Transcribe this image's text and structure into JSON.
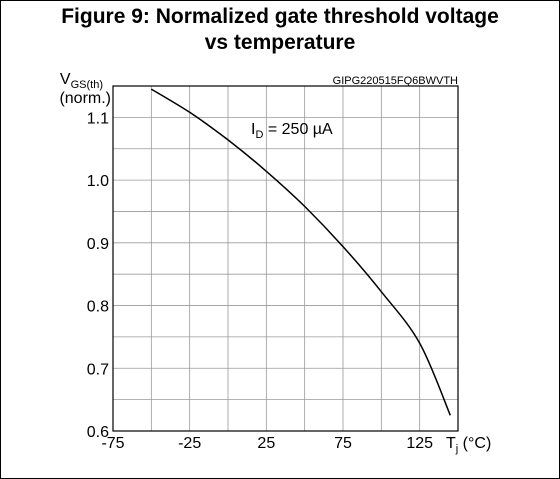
{
  "figure": {
    "title_line1": "Figure 9: Normalized gate threshold voltage",
    "title_line2": "vs temperature"
  },
  "chart_data": {
    "type": "line",
    "title": "Figure 9: Normalized gate threshold voltage vs temperature",
    "code": "GIPG220515FQ6BWVTH",
    "ylabel_main": "V",
    "ylabel_sub": "GS(th)",
    "ylabel_line2": "(norm.)",
    "xlabel_main": "T",
    "xlabel_sub": "j",
    "xlabel_unit": " (°C)",
    "annotation_main": "I",
    "annotation_sub": "D",
    "annotation_value": " = 250 µA",
    "xlim": [
      -75,
      150
    ],
    "ylim": [
      0.6,
      1.15
    ],
    "x_ticks": [
      -75,
      -25,
      25,
      75,
      125
    ],
    "x_tick_labels": [
      "-75",
      "-25",
      "25",
      "75",
      "125"
    ],
    "y_ticks": [
      0.6,
      0.7,
      0.8,
      0.9,
      1.0,
      1.1
    ],
    "y_tick_labels": [
      "0.6",
      "0.7",
      "0.8",
      "0.9",
      "1.0",
      "1.1"
    ],
    "grid": true,
    "series": [
      {
        "x": [
          -50,
          -25,
          0,
          25,
          50,
          75,
          100,
          125,
          145
        ],
        "y": [
          1.145,
          1.108,
          1.064,
          1.014,
          0.958,
          0.894,
          0.822,
          0.74,
          0.625
        ]
      }
    ]
  }
}
